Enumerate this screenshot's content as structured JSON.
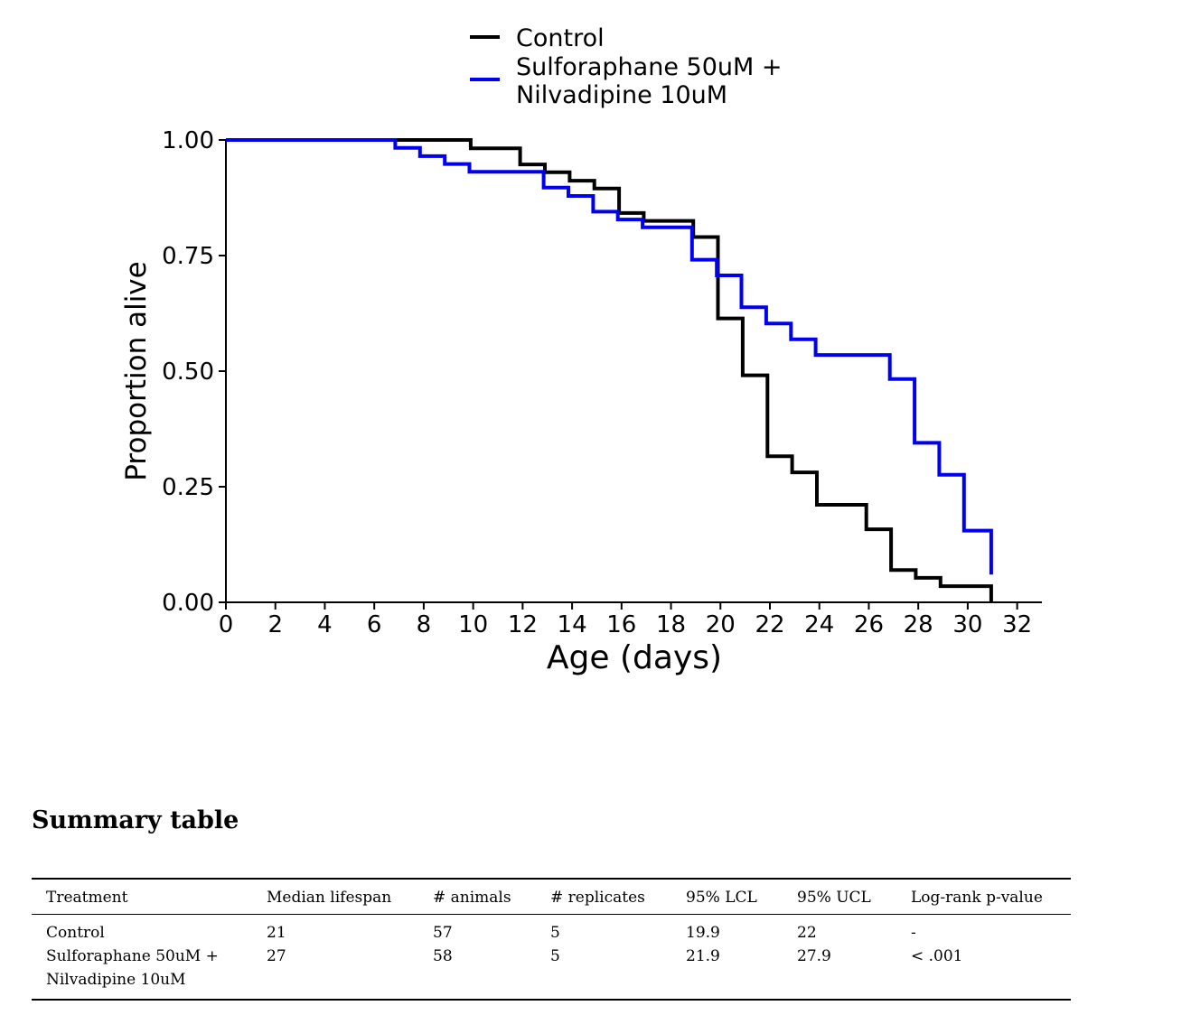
{
  "chart_data": {
    "type": "line",
    "step": true,
    "xlabel": "Age (days)",
    "ylabel": "Proportion alive",
    "xlim": [
      0,
      33
    ],
    "ylim": [
      0,
      1
    ],
    "xticks": [
      "0",
      "2",
      "4",
      "6",
      "8",
      "10",
      "12",
      "14",
      "16",
      "18",
      "20",
      "22",
      "24",
      "26",
      "28",
      "30",
      "32"
    ],
    "yticks": [
      "0.00",
      "0.25",
      "0.50",
      "0.75",
      "1.00"
    ],
    "grid": false,
    "legend": "top-center",
    "series": [
      {
        "name": "Control",
        "color": "#000000",
        "points": [
          [
            0,
            1.0
          ],
          [
            9.9,
            1.0
          ],
          [
            9.9,
            0.982
          ],
          [
            11.9,
            0.982
          ],
          [
            11.9,
            0.947
          ],
          [
            12.9,
            0.947
          ],
          [
            12.9,
            0.93
          ],
          [
            13.9,
            0.93
          ],
          [
            13.9,
            0.912
          ],
          [
            14.9,
            0.912
          ],
          [
            14.9,
            0.895
          ],
          [
            15.9,
            0.895
          ],
          [
            15.9,
            0.842
          ],
          [
            16.9,
            0.842
          ],
          [
            16.9,
            0.825
          ],
          [
            18.9,
            0.825
          ],
          [
            18.9,
            0.79
          ],
          [
            19.9,
            0.79
          ],
          [
            19.9,
            0.614
          ],
          [
            20.9,
            0.614
          ],
          [
            20.9,
            0.491
          ],
          [
            21.9,
            0.491
          ],
          [
            21.9,
            0.316
          ],
          [
            22.9,
            0.316
          ],
          [
            22.9,
            0.281
          ],
          [
            23.9,
            0.281
          ],
          [
            23.9,
            0.211
          ],
          [
            25.9,
            0.211
          ],
          [
            25.9,
            0.158
          ],
          [
            26.9,
            0.158
          ],
          [
            26.9,
            0.07
          ],
          [
            27.9,
            0.07
          ],
          [
            27.9,
            0.053
          ],
          [
            28.9,
            0.053
          ],
          [
            28.9,
            0.035
          ],
          [
            30.95,
            0.035
          ],
          [
            30.95,
            0.0
          ]
        ]
      },
      {
        "name": "Sulforaphane 50uM +\n Nilvadipine 10uM",
        "color": "#0000ee",
        "points": [
          [
            0,
            1.0
          ],
          [
            6.85,
            1.0
          ],
          [
            6.85,
            0.983
          ],
          [
            7.85,
            0.983
          ],
          [
            7.85,
            0.965
          ],
          [
            8.85,
            0.965
          ],
          [
            8.85,
            0.948
          ],
          [
            9.85,
            0.948
          ],
          [
            9.85,
            0.931
          ],
          [
            12.85,
            0.931
          ],
          [
            12.85,
            0.897
          ],
          [
            13.85,
            0.897
          ],
          [
            13.85,
            0.879
          ],
          [
            14.85,
            0.879
          ],
          [
            14.85,
            0.845
          ],
          [
            15.85,
            0.845
          ],
          [
            15.85,
            0.828
          ],
          [
            16.85,
            0.828
          ],
          [
            16.85,
            0.811
          ],
          [
            18.85,
            0.811
          ],
          [
            18.85,
            0.741
          ],
          [
            19.85,
            0.741
          ],
          [
            19.85,
            0.707
          ],
          [
            20.85,
            0.707
          ],
          [
            20.85,
            0.638
          ],
          [
            21.85,
            0.638
          ],
          [
            21.85,
            0.603
          ],
          [
            22.85,
            0.603
          ],
          [
            22.85,
            0.569
          ],
          [
            23.85,
            0.569
          ],
          [
            23.85,
            0.535
          ],
          [
            26.85,
            0.535
          ],
          [
            26.85,
            0.483
          ],
          [
            27.85,
            0.483
          ],
          [
            27.85,
            0.345
          ],
          [
            28.85,
            0.345
          ],
          [
            28.85,
            0.276
          ],
          [
            29.85,
            0.276
          ],
          [
            29.85,
            0.155
          ],
          [
            30.95,
            0.155
          ],
          [
            30.95,
            0.06
          ]
        ]
      }
    ]
  },
  "summary": {
    "title": "Summary table",
    "headers": [
      "Treatment",
      "Median lifespan",
      "# animals",
      "# replicates",
      "95% LCL",
      "95% UCL",
      "Log-rank p-value"
    ],
    "rows": [
      {
        "treatment_line1": "Control",
        "treatment_line2": "",
        "median": "21",
        "animals": "57",
        "replicates": "5",
        "lcl": "19.9",
        "ucl": "22",
        "pvalue": "-"
      },
      {
        "treatment_line1": "Sulforaphane 50uM +",
        "treatment_line2": "Nilvadipine 10uM",
        "median": "27",
        "animals": "58",
        "replicates": "5",
        "lcl": "21.9",
        "ucl": "27.9",
        "pvalue": "< .001"
      }
    ]
  }
}
